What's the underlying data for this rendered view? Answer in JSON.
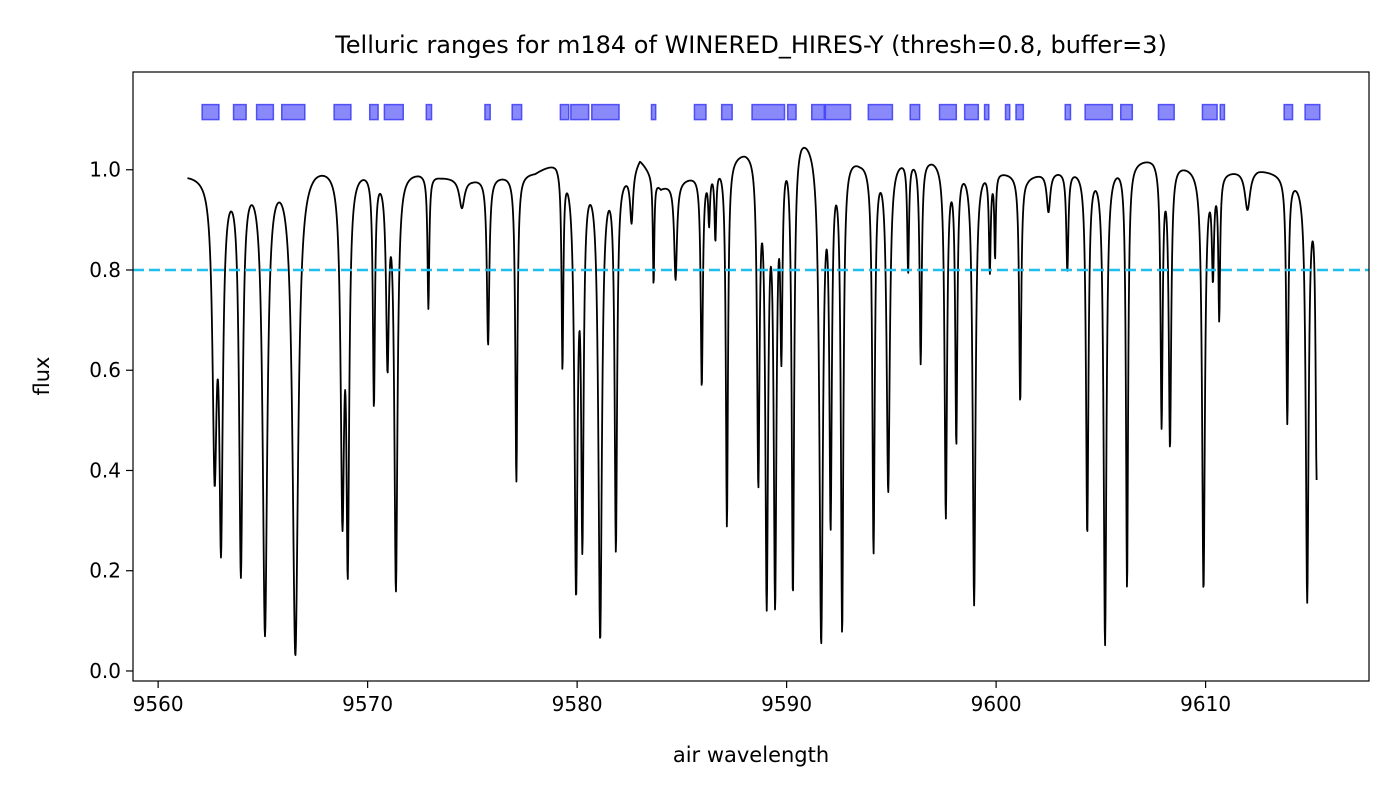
{
  "chart_data": {
    "type": "line",
    "title": "Telluric ranges for m184 of WINERED_HIRES-Y (thresh=0.8, buffer=3)",
    "xlabel": "air wavelength",
    "ylabel": "flux",
    "xlim": [
      9558.8,
      9617.8
    ],
    "ylim": [
      -0.02,
      1.195
    ],
    "xticks": [
      9560,
      9570,
      9580,
      9590,
      9600,
      9610
    ],
    "yticks": [
      0.0,
      0.2,
      0.4,
      0.6,
      0.8,
      1.0
    ],
    "xtick_labels": [
      "9560",
      "9570",
      "9580",
      "9590",
      "9600",
      "9610"
    ],
    "ytick_labels": [
      "0.0",
      "0.2",
      "0.4",
      "0.6",
      "0.8",
      "1.0"
    ],
    "grid": false,
    "threshold": {
      "value": 0.8,
      "color": "#1ebfee",
      "style": "dashed"
    },
    "spectrum": {
      "color": "#000000",
      "x_range": [
        9561.4,
        9615.3
      ],
      "continuum": [
        [
          9561.4,
          0.995
        ],
        [
          9562.5,
          1.0
        ],
        [
          9567.5,
          1.02
        ],
        [
          9572.5,
          1.0
        ],
        [
          9573.5,
          0.99
        ],
        [
          9575.0,
          0.985
        ],
        [
          9578.0,
          1.0
        ],
        [
          9579.0,
          1.025
        ],
        [
          9582.5,
          1.0
        ],
        [
          9583.0,
          1.03
        ],
        [
          9584.0,
          0.97
        ],
        [
          9586.0,
          1.0
        ],
        [
          9588.0,
          1.05
        ],
        [
          9590.7,
          1.09
        ],
        [
          9593.5,
          1.03
        ],
        [
          9597.0,
          1.03
        ],
        [
          9601.5,
          0.99
        ],
        [
          9602.5,
          1.0
        ],
        [
          9604.5,
          1.01
        ],
        [
          9607.5,
          1.03
        ],
        [
          9610.5,
          1.0
        ],
        [
          9612.5,
          1.005
        ],
        [
          9615.3,
          0.98
        ]
      ],
      "lines": [
        [
          9562.7,
          0.6,
          0.12
        ],
        [
          9563.0,
          0.75,
          0.1
        ],
        [
          9563.95,
          0.81,
          0.1
        ],
        [
          9565.1,
          0.93,
          0.13
        ],
        [
          9566.55,
          0.97,
          0.16
        ],
        [
          9568.8,
          0.7,
          0.1
        ],
        [
          9569.05,
          0.8,
          0.08
        ],
        [
          9570.3,
          0.47,
          0.06
        ],
        [
          9570.95,
          0.38,
          0.08
        ],
        [
          9571.35,
          0.84,
          0.09
        ],
        [
          9572.9,
          0.27,
          0.05
        ],
        [
          9574.5,
          0.06,
          0.15
        ],
        [
          9575.75,
          0.34,
          0.07
        ],
        [
          9577.1,
          0.62,
          0.06
        ],
        [
          9579.3,
          0.4,
          0.05
        ],
        [
          9579.95,
          0.85,
          0.09
        ],
        [
          9580.25,
          0.75,
          0.07
        ],
        [
          9581.1,
          0.94,
          0.1
        ],
        [
          9581.85,
          0.76,
          0.07
        ],
        [
          9582.6,
          0.1,
          0.08
        ],
        [
          9583.65,
          0.22,
          0.04
        ],
        [
          9584.7,
          0.2,
          0.08
        ],
        [
          9585.95,
          0.43,
          0.06
        ],
        [
          9586.3,
          0.1,
          0.05
        ],
        [
          9586.6,
          0.14,
          0.05
        ],
        [
          9587.15,
          0.72,
          0.06
        ],
        [
          9588.65,
          0.64,
          0.07
        ],
        [
          9589.05,
          0.88,
          0.08
        ],
        [
          9589.45,
          0.88,
          0.08
        ],
        [
          9589.75,
          0.38,
          0.06
        ],
        [
          9590.3,
          0.86,
          0.07
        ],
        [
          9591.65,
          0.95,
          0.1
        ],
        [
          9592.1,
          0.72,
          0.07
        ],
        [
          9592.65,
          0.93,
          0.07
        ],
        [
          9594.15,
          0.77,
          0.07
        ],
        [
          9594.85,
          0.65,
          0.09
        ],
        [
          9595.8,
          0.22,
          0.05
        ],
        [
          9596.4,
          0.4,
          0.06
        ],
        [
          9597.6,
          0.7,
          0.07
        ],
        [
          9598.1,
          0.55,
          0.06
        ],
        [
          9598.95,
          0.87,
          0.08
        ],
        [
          9599.7,
          0.2,
          0.05
        ],
        [
          9599.95,
          0.17,
          0.04
        ],
        [
          9601.15,
          0.46,
          0.06
        ],
        [
          9602.5,
          0.08,
          0.1
        ],
        [
          9603.4,
          0.2,
          0.06
        ],
        [
          9604.35,
          0.73,
          0.07
        ],
        [
          9605.2,
          0.95,
          0.08
        ],
        [
          9606.25,
          0.84,
          0.06
        ],
        [
          9607.9,
          0.52,
          0.06
        ],
        [
          9608.3,
          0.56,
          0.07
        ],
        [
          9609.9,
          0.84,
          0.08
        ],
        [
          9610.35,
          0.2,
          0.06
        ],
        [
          9610.65,
          0.29,
          0.05
        ],
        [
          9612.0,
          0.08,
          0.15
        ],
        [
          9613.9,
          0.5,
          0.06
        ],
        [
          9614.85,
          0.86,
          0.08
        ],
        [
          9615.3,
          0.6,
          0.06
        ]
      ]
    },
    "ranges": {
      "color": "#3b3bf5",
      "y": 1.115,
      "intervals": [
        [
          9562.1,
          9562.9
        ],
        [
          9563.6,
          9564.2
        ],
        [
          9564.7,
          9565.5
        ],
        [
          9565.9,
          9567.0
        ],
        [
          9568.4,
          9569.2
        ],
        [
          9570.1,
          9570.5
        ],
        [
          9570.8,
          9571.7
        ],
        [
          9572.8,
          9573.05
        ],
        [
          9575.6,
          9575.85
        ],
        [
          9576.9,
          9577.35
        ],
        [
          9579.2,
          9579.6
        ],
        [
          9579.7,
          9580.55
        ],
        [
          9580.7,
          9582.0
        ],
        [
          9583.55,
          9583.75
        ],
        [
          9585.6,
          9586.15
        ],
        [
          9586.9,
          9587.4
        ],
        [
          9588.35,
          9589.9
        ],
        [
          9590.05,
          9590.45
        ],
        [
          9591.2,
          9591.8
        ],
        [
          9591.85,
          9593.05
        ],
        [
          9593.9,
          9595.05
        ],
        [
          9595.9,
          9596.35
        ],
        [
          9597.3,
          9598.1
        ],
        [
          9598.5,
          9599.15
        ],
        [
          9599.45,
          9599.65
        ],
        [
          9600.45,
          9600.65
        ],
        [
          9600.95,
          9601.3
        ],
        [
          9603.3,
          9603.55
        ],
        [
          9604.25,
          9605.55
        ],
        [
          9605.95,
          9606.5
        ],
        [
          9607.75,
          9608.5
        ],
        [
          9609.85,
          9610.55
        ],
        [
          9610.7,
          9610.9
        ],
        [
          9613.75,
          9614.15
        ],
        [
          9614.75,
          9615.45
        ]
      ]
    }
  }
}
